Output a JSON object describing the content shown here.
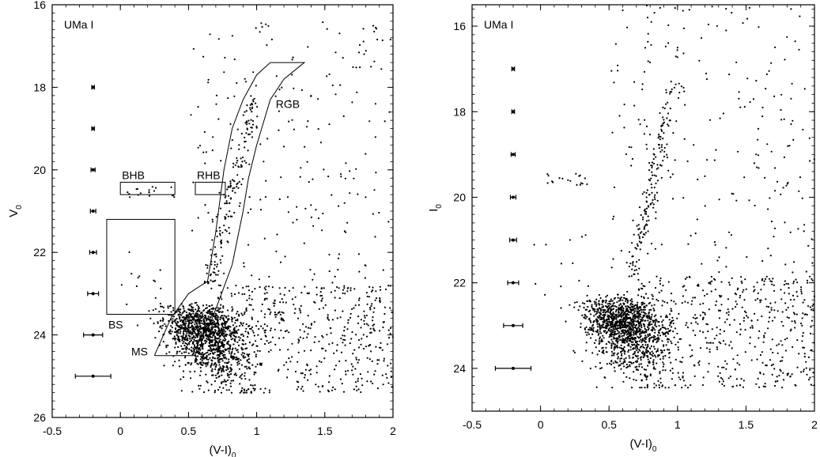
{
  "chart_data": [
    {
      "type": "scatter",
      "panel": "left",
      "panel_label": "UMa I",
      "xlabel": "(V-I)",
      "xlabel_sub": "0",
      "ylabel": "V",
      "ylabel_sub": "0",
      "xlim": [
        -0.5,
        2
      ],
      "ylim": [
        16,
        26
      ],
      "y_inverted": true,
      "xticks": [
        "-0.5",
        "0",
        "0.5",
        "1",
        "1.5",
        "2"
      ],
      "xtick_values": [
        -0.5,
        0,
        0.5,
        1,
        1.5,
        2
      ],
      "yticks": [
        "16",
        "18",
        "20",
        "22",
        "24",
        "26"
      ],
      "ytick_values": [
        16,
        18,
        20,
        22,
        24,
        26
      ],
      "error_bars": [
        {
          "x": -0.2,
          "y": 18,
          "err": 0.01
        },
        {
          "x": -0.2,
          "y": 19,
          "err": 0.01
        },
        {
          "x": -0.2,
          "y": 20,
          "err": 0.015
        },
        {
          "x": -0.2,
          "y": 21,
          "err": 0.02
        },
        {
          "x": -0.2,
          "y": 22,
          "err": 0.025
        },
        {
          "x": -0.2,
          "y": 23,
          "err": 0.04
        },
        {
          "x": -0.2,
          "y": 24,
          "err": 0.07
        },
        {
          "x": -0.2,
          "y": 25,
          "err": 0.13
        }
      ],
      "regions": [
        {
          "name": "BHB",
          "x": [
            0,
            0.4
          ],
          "y": [
            20.3,
            20.6
          ]
        },
        {
          "name": "RHB",
          "x": [
            0.55,
            0.77
          ],
          "y": [
            20.3,
            20.6
          ]
        },
        {
          "name": "BS",
          "x": [
            -0.1,
            0.4
          ],
          "y": [
            21.2,
            23.5
          ]
        }
      ],
      "outline_label_rgb": "RGB",
      "outline_label_ms": "MS",
      "outline_rgb_ms": [
        [
          0.25,
          24.5
        ],
        [
          0.37,
          23.6
        ],
        [
          0.5,
          23.0
        ],
        [
          0.64,
          22.7
        ],
        [
          0.7,
          21.5
        ],
        [
          0.76,
          20.0
        ],
        [
          0.82,
          19.0
        ],
        [
          0.9,
          18.3
        ],
        [
          1.0,
          17.7
        ],
        [
          1.1,
          17.4
        ],
        [
          1.35,
          17.4
        ],
        [
          1.2,
          17.8
        ],
        [
          1.1,
          18.3
        ],
        [
          1.0,
          19.4
        ],
        [
          0.94,
          20.2
        ],
        [
          0.9,
          21.0
        ],
        [
          0.82,
          22.3
        ],
        [
          0.72,
          23.2
        ],
        [
          0.65,
          23.8
        ],
        [
          0.58,
          24.1
        ],
        [
          0.55,
          24.5
        ],
        [
          0.25,
          24.5
        ]
      ],
      "stars": "approximately 2000 stars; dense main-sequence turnoff at (V-I) 0.4–0.9, V 23–25; red giant branch rising from (0.65, 22.5) to (1.0, 18); sparse field stars across (V-I) 0.5–2.0"
    },
    {
      "type": "scatter",
      "panel": "right",
      "panel_label": "UMa I",
      "xlabel": "(V-I)",
      "xlabel_sub": "0",
      "ylabel": "I",
      "ylabel_sub": "0",
      "xlim": [
        -0.5,
        2
      ],
      "ylim": [
        15.5,
        25
      ],
      "y_inverted": true,
      "xticks": [
        "-0.5",
        "0",
        "0.5",
        "1",
        "1.5",
        "2"
      ],
      "xtick_values": [
        -0.5,
        0,
        0.5,
        1,
        1.5,
        2
      ],
      "yticks": [
        "16",
        "18",
        "20",
        "22",
        "24"
      ],
      "ytick_values": [
        16,
        18,
        20,
        22,
        24
      ],
      "error_bars": [
        {
          "x": -0.2,
          "y": 17,
          "err": 0.01
        },
        {
          "x": -0.2,
          "y": 18,
          "err": 0.01
        },
        {
          "x": -0.2,
          "y": 19,
          "err": 0.015
        },
        {
          "x": -0.2,
          "y": 20,
          "err": 0.02
        },
        {
          "x": -0.2,
          "y": 21,
          "err": 0.025
        },
        {
          "x": -0.2,
          "y": 22,
          "err": 0.04
        },
        {
          "x": -0.2,
          "y": 23,
          "err": 0.07
        },
        {
          "x": -0.2,
          "y": 24,
          "err": 0.13
        }
      ],
      "stars": "approximately 2000 stars; dense main-sequence turnoff at (V-I) 0.4–0.9, I 22.8–24.5; red giant branch rising from (0.7, 22) to (0.9, 19); sparse field stars across (V-I) 0.5–2.0"
    }
  ]
}
